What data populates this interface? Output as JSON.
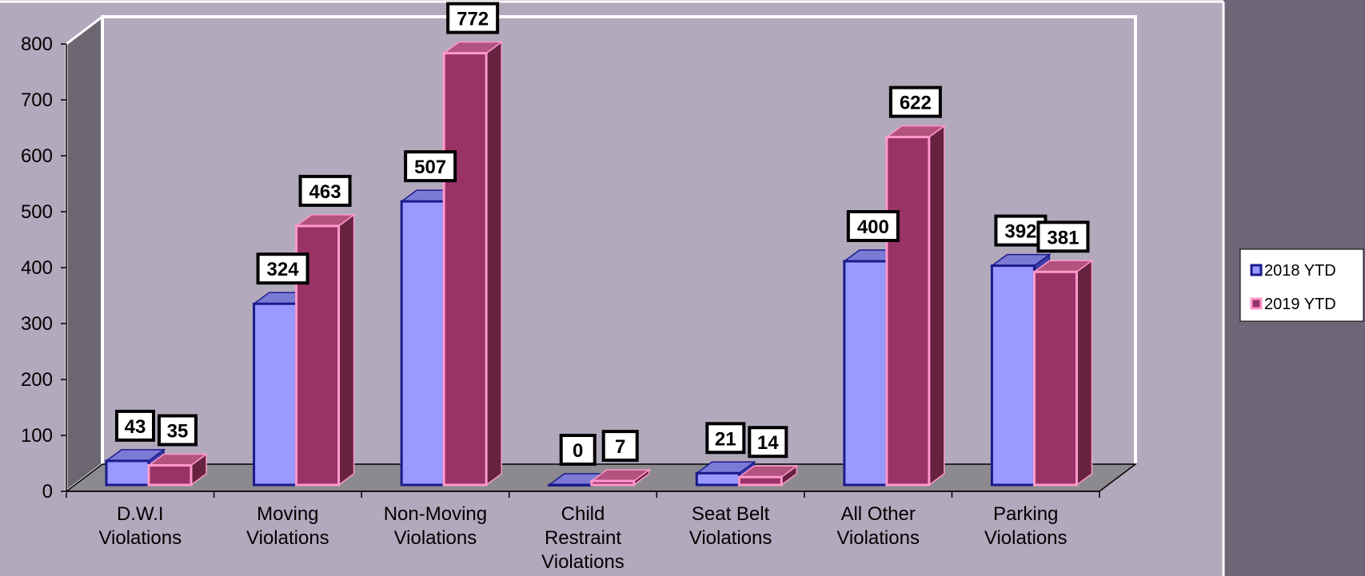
{
  "chart_data": {
    "type": "bar",
    "categories": [
      [
        "D.W.I",
        "Violations"
      ],
      [
        "Moving",
        "Violations"
      ],
      [
        "Non-Moving",
        "Violations"
      ],
      [
        "Child",
        "Restraint",
        "Violations"
      ],
      [
        "Seat Belt",
        "Violations"
      ],
      [
        "All Other",
        "Violations"
      ],
      [
        "Parking",
        "Violations"
      ]
    ],
    "series": [
      {
        "name": "2018 YTD",
        "values": [
          43,
          324,
          507,
          0,
          21,
          400,
          392
        ]
      },
      {
        "name": "2019 YTD",
        "values": [
          35,
          463,
          772,
          7,
          14,
          622,
          381
        ]
      }
    ],
    "ylim": [
      0,
      800
    ],
    "yticks": [
      0,
      100,
      200,
      300,
      400,
      500,
      600,
      700,
      800
    ],
    "legend_position": "right",
    "style_3d": true,
    "colors": {
      "background": "#b2a9bd",
      "right_panel": "#6c6677",
      "floor": "#8c8a8f",
      "left_wall": "#6b6670",
      "series_2018_front": "#9999ff",
      "series_2018_top": "#7b7bd6",
      "series_2018_side": "#3d3da6",
      "series_2018_edge": "#1a1a8c",
      "series_2019_front": "#993366",
      "series_2019_top": "#b3527e",
      "series_2019_side": "#66223f",
      "series_2019_edge": "#ff99cc"
    }
  }
}
